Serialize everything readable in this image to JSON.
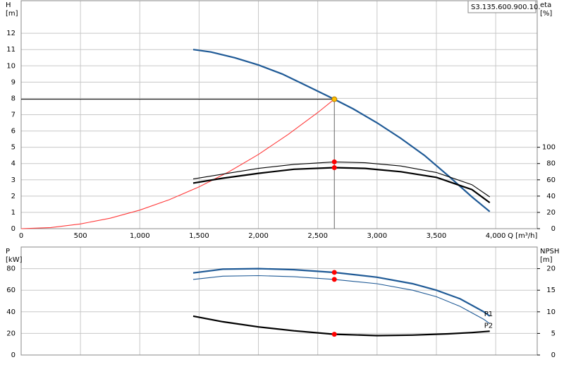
{
  "chart_data": [
    {
      "type": "line",
      "title": "S3.135.600.900.10.",
      "y_label": "H",
      "y_unit": "[m]",
      "y2_label": "eta",
      "y2_unit": "[%]",
      "x_label": "Q [m³/h]",
      "xlim": [
        0,
        4350
      ],
      "xticks": [
        0,
        500,
        {
          "value": 1000,
          "label": "1,000"
        },
        {
          "value": 1500,
          "label": "1,500"
        },
        {
          "value": 2000,
          "label": "2,000"
        },
        {
          "value": 2500,
          "label": "2,500"
        },
        {
          "value": 3000,
          "label": "3,000"
        },
        {
          "value": 3500,
          "label": "3,500"
        },
        {
          "value": 4000,
          "label": "4,000"
        }
      ],
      "ylim": [
        0,
        14
      ],
      "yticks": [
        0,
        1,
        2,
        3,
        4,
        5,
        6,
        7,
        8,
        9,
        10,
        11,
        12
      ],
      "y2lim": [
        0,
        280
      ],
      "y2ticks": [
        0,
        20,
        40,
        60,
        80,
        100
      ],
      "grid": true,
      "series": [
        {
          "color": "#1f5a96",
          "style": "thick",
          "axis": "y",
          "x": [
            1450,
            1600,
            1800,
            2000,
            2200,
            2400,
            2640,
            2800,
            3000,
            3200,
            3400,
            3600,
            3800,
            3950
          ],
          "values": [
            11,
            10.85,
            10.5,
            10.05,
            9.5,
            8.8,
            7.95,
            7.35,
            6.5,
            5.55,
            4.5,
            3.25,
            1.95,
            1.05
          ]
        },
        {
          "color": "#ff3b3b",
          "style": "thin",
          "axis": "y",
          "x": [
            0,
            250,
            500,
            750,
            1000,
            1250,
            1500,
            1750,
            2000,
            2250,
            2500,
            2640
          ],
          "values": [
            0,
            0.07,
            0.29,
            0.64,
            1.14,
            1.78,
            2.57,
            3.49,
            4.56,
            5.78,
            7.13,
            7.95
          ]
        },
        {
          "color": "#000000",
          "style": "thin",
          "axis": "y2",
          "x": [
            1450,
            1700,
            2000,
            2300,
            2640,
            2900,
            3200,
            3500,
            3800,
            3950
          ],
          "values": [
            61,
            67,
            74,
            79,
            82,
            81,
            77,
            69,
            54,
            39
          ]
        },
        {
          "color": "#000000",
          "style": "thick",
          "axis": "y2",
          "x": [
            1450,
            1700,
            2000,
            2300,
            2640,
            2900,
            3200,
            3500,
            3800,
            3950
          ],
          "values": [
            56,
            62,
            68,
            73,
            75,
            74,
            70,
            63,
            48,
            32
          ]
        }
      ],
      "markers": [
        {
          "x": 2640,
          "y": 7.95,
          "axis": "y",
          "color": "#ffc000",
          "guide": true
        },
        {
          "x": 2640,
          "y": 82,
          "axis": "y2",
          "color": "#ff0000"
        },
        {
          "x": 2640,
          "y": 75,
          "axis": "y2",
          "color": "#ff0000"
        }
      ]
    },
    {
      "type": "line",
      "y_label": "P",
      "y_unit": "[kW]",
      "y2_label": "NPSH",
      "y2_unit": "[m]",
      "xlim": [
        0,
        4350
      ],
      "xticks": [
        0,
        500,
        1000,
        1500,
        2000,
        2500,
        3000,
        3500,
        4000
      ],
      "ylim": [
        0,
        100
      ],
      "yticks": [
        0,
        20,
        40,
        60,
        80
      ],
      "y2lim": [
        0,
        25
      ],
      "y2ticks": [
        0,
        5,
        10,
        15,
        20
      ],
      "grid": true,
      "series": [
        {
          "name": "P1",
          "color": "#1f5a96",
          "style": "thick",
          "axis": "y",
          "x": [
            1450,
            1700,
            2000,
            2300,
            2640,
            3000,
            3300,
            3500,
            3700,
            3900,
            3950
          ],
          "values": [
            76,
            79.5,
            80,
            79,
            76.5,
            72,
            66,
            60,
            52,
            40,
            36
          ]
        },
        {
          "name": "P2",
          "color": "#1f5a96",
          "style": "thin",
          "axis": "y",
          "x": [
            1450,
            1700,
            2000,
            2300,
            2640,
            3000,
            3300,
            3500,
            3700,
            3900,
            3950
          ],
          "values": [
            70,
            73,
            73.5,
            72.5,
            70,
            66,
            60,
            54,
            45,
            33,
            29
          ]
        },
        {
          "color": "#000000",
          "style": "thick",
          "axis": "y2",
          "x": [
            1450,
            1700,
            2000,
            2300,
            2640,
            3000,
            3300,
            3600,
            3800,
            3950
          ],
          "values": [
            9,
            7.7,
            6.5,
            5.6,
            4.8,
            4.5,
            4.6,
            4.9,
            5.2,
            5.5
          ]
        }
      ],
      "markers": [
        {
          "x": 2640,
          "y": 76.5,
          "axis": "y",
          "color": "#ff0000"
        },
        {
          "x": 2640,
          "y": 70,
          "axis": "y",
          "color": "#ff0000"
        },
        {
          "x": 2640,
          "y": 4.8,
          "axis": "y2",
          "color": "#ff0000"
        }
      ]
    }
  ]
}
